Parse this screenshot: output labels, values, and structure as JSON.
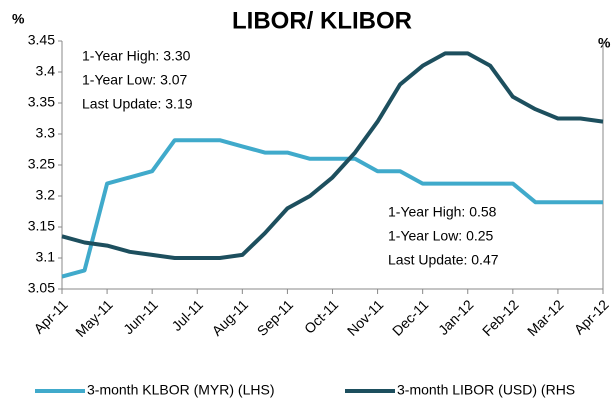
{
  "chart_data": {
    "type": "line",
    "title": "LIBOR/ KLIBOR",
    "y_unit": "%",
    "y2_unit": "%",
    "xlim": [
      0,
      12
    ],
    "xticks": [
      {
        "value": 0,
        "label": "Apr-11"
      },
      {
        "value": 1,
        "label": "May-11"
      },
      {
        "value": 2,
        "label": "Jun-11"
      },
      {
        "value": 3,
        "label": "Jul-11"
      },
      {
        "value": 4,
        "label": "Aug-11"
      },
      {
        "value": 5,
        "label": "Sep-11"
      },
      {
        "value": 6,
        "label": "Oct-11"
      },
      {
        "value": 7,
        "label": "Nov-11"
      },
      {
        "value": 8,
        "label": "Dec-11"
      },
      {
        "value": 9,
        "label": "Jan-12"
      },
      {
        "value": 10,
        "label": "Feb-12"
      },
      {
        "value": 11,
        "label": "Mar-12"
      },
      {
        "value": 12,
        "label": "Apr-12"
      }
    ],
    "ylim": [
      3.05,
      3.45
    ],
    "yticks": [
      3.05,
      3.1,
      3.15,
      3.2,
      3.25,
      3.3,
      3.35,
      3.4,
      3.45
    ],
    "y2lim": [
      0.2,
      0.6
    ],
    "x": [
      0,
      0.5,
      1,
      1.5,
      2,
      2.5,
      3,
      3.5,
      4,
      4.5,
      5,
      5.5,
      6,
      6.5,
      7,
      7.5,
      8,
      8.5,
      9,
      9.5,
      10,
      10.5,
      11,
      11.5,
      12
    ],
    "series": [
      {
        "name": "3-month KLBOR (MYR) (LHS)",
        "color": "#40aacb",
        "values": [
          3.07,
          3.08,
          3.22,
          3.23,
          3.24,
          3.29,
          3.29,
          3.29,
          3.28,
          3.27,
          3.27,
          3.26,
          3.26,
          3.26,
          3.24,
          3.24,
          3.22,
          3.22,
          3.22,
          3.22,
          3.22,
          3.19,
          3.19,
          3.19,
          3.19
        ]
      },
      {
        "name": "3-month LIBOR (USD)  (RHS",
        "color": "#1d4f5e",
        "axis": "y2",
        "values": [
          0.285,
          0.275,
          0.27,
          0.26,
          0.255,
          0.25,
          0.25,
          0.25,
          0.255,
          0.29,
          0.33,
          0.35,
          0.38,
          0.42,
          0.47,
          0.53,
          0.56,
          0.58,
          0.58,
          0.56,
          0.51,
          0.49,
          0.475,
          0.475,
          0.47
        ]
      }
    ],
    "annotations": [
      "1-Year High: 3.30",
      "1-Year Low: 3.07",
      "Last Update: 3.19",
      "1-Year High: 0.58",
      "1-Year Low: 0.25",
      "Last Update: 0.47"
    ]
  }
}
